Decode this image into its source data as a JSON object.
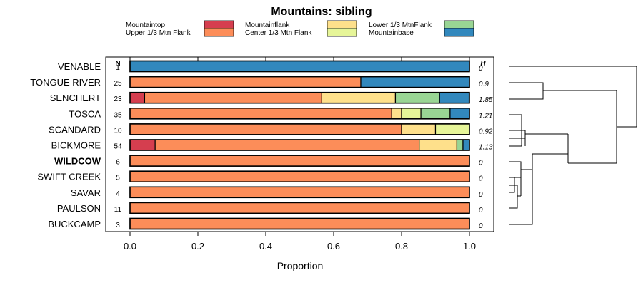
{
  "chart_data": {
    "type": "bar",
    "orientation": "horizontal",
    "stacked": true,
    "title": "Mountains: sibling",
    "xlabel": "Proportion",
    "xlim": [
      0,
      1
    ],
    "xticks": [
      "0.0",
      "0.2",
      "0.4",
      "0.6",
      "0.8",
      "1.0"
    ],
    "xtick_values": [
      0,
      0.2,
      0.4,
      0.6,
      0.8,
      1.0
    ],
    "n_header": "N",
    "h_header": "H",
    "legend": [
      {
        "name": "Mountaintop",
        "color": "#d53e4f"
      },
      {
        "name": "Upper 1/3 Mtn Flank",
        "color": "#fc8d59"
      },
      {
        "name": "Mountainflank",
        "color": "#fee08b"
      },
      {
        "name": "Center 1/3 Mtn Flank",
        "color": "#e6f598"
      },
      {
        "name": "Lower 1/3 MtnFlank",
        "color": "#99d594"
      },
      {
        "name": "Mountainbase",
        "color": "#3288bd"
      }
    ],
    "categories": [
      "VENABLE",
      "TONGUE RIVER",
      "SENCHERT",
      "TOSCA",
      "SCANDARD",
      "BICKMORE",
      "WILDCOW",
      "SWIFT CREEK",
      "SAVAR",
      "PAULSON",
      "BUCKCAMP"
    ],
    "bold_categories": [
      "WILDCOW"
    ],
    "n": [
      "1",
      "25",
      "23",
      "35",
      "10",
      "54",
      "6",
      "5",
      "4",
      "11",
      "3"
    ],
    "h": [
      "0",
      "0.9",
      "1.85",
      "1.21",
      "0.92",
      "1.13",
      "0",
      "0",
      "0",
      "0",
      "0"
    ],
    "series": [
      {
        "name": "Mountaintop",
        "values": [
          0,
          0,
          0.043,
          0,
          0,
          0.074,
          0,
          0,
          0,
          0,
          0
        ]
      },
      {
        "name": "Upper 1/3 Mtn Flank",
        "values": [
          0,
          0.68,
          0.522,
          0.771,
          0.8,
          0.778,
          1,
          1,
          1,
          1,
          1
        ]
      },
      {
        "name": "Mountainflank",
        "values": [
          0,
          0,
          0.217,
          0.029,
          0.1,
          0.111,
          0,
          0,
          0,
          0,
          0
        ]
      },
      {
        "name": "Center 1/3 Mtn Flank",
        "values": [
          0,
          0,
          0,
          0.057,
          0.1,
          0,
          0,
          0,
          0,
          0,
          0
        ]
      },
      {
        "name": "Lower 1/3 MtnFlank",
        "values": [
          0,
          0,
          0.13,
          0.086,
          0,
          0.018,
          0,
          0,
          0,
          0,
          0
        ]
      },
      {
        "name": "Mountainbase",
        "values": [
          1,
          0.32,
          0.087,
          0.057,
          0,
          0.019,
          0,
          0,
          0,
          0,
          0
        ]
      }
    ]
  }
}
